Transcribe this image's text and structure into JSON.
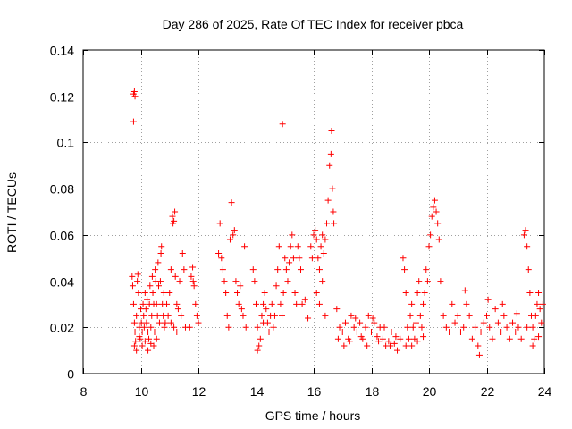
{
  "chart_data": {
    "type": "scatter",
    "title": "Day 286 of 2025, Rate Of TEC Index for receiver pbca",
    "xlabel": "GPS time / hours",
    "ylabel": "ROTI / TECUs",
    "xlim": [
      8,
      24
    ],
    "ylim": [
      0,
      0.14
    ],
    "x_ticks": [
      8,
      10,
      12,
      14,
      16,
      18,
      20,
      22,
      24
    ],
    "x_tick_labels": [
      "8",
      "10",
      "12",
      "14",
      "16",
      "18",
      "20",
      "22",
      "24"
    ],
    "y_ticks": [
      0,
      0.02,
      0.04,
      0.06,
      0.08,
      0.1,
      0.12,
      0.14
    ],
    "y_tick_labels": [
      "0",
      "0.02",
      "0.04",
      "0.06",
      "0.08",
      "0.1",
      "0.12",
      "0.14"
    ],
    "grid": true,
    "marker": "+",
    "color": "#ff0000",
    "series": [
      {
        "name": "ROTI",
        "points": [
          [
            9.75,
            0.121
          ],
          [
            9.78,
            0.122
          ],
          [
            9.8,
            0.12
          ],
          [
            9.75,
            0.109
          ],
          [
            9.7,
            0.042
          ],
          [
            9.72,
            0.038
          ],
          [
            9.75,
            0.03
          ],
          [
            9.78,
            0.022
          ],
          [
            9.8,
            0.018
          ],
          [
            9.82,
            0.014
          ],
          [
            9.85,
            0.025
          ],
          [
            9.88,
            0.04
          ],
          [
            9.9,
            0.043
          ],
          [
            9.92,
            0.035
          ],
          [
            9.95,
            0.02
          ],
          [
            9.98,
            0.015
          ],
          [
            10.0,
            0.028
          ],
          [
            10.02,
            0.022
          ],
          [
            10.05,
            0.018
          ],
          [
            10.08,
            0.03
          ],
          [
            10.1,
            0.025
          ],
          [
            10.12,
            0.02
          ],
          [
            10.15,
            0.035
          ],
          [
            10.18,
            0.028
          ],
          [
            10.2,
            0.022
          ],
          [
            10.22,
            0.032
          ],
          [
            10.25,
            0.018
          ],
          [
            10.28,
            0.015
          ],
          [
            10.3,
            0.03
          ],
          [
            10.32,
            0.038
          ],
          [
            10.35,
            0.02
          ],
          [
            10.38,
            0.025
          ],
          [
            10.4,
            0.042
          ],
          [
            10.42,
            0.035
          ],
          [
            10.45,
            0.03
          ],
          [
            10.48,
            0.018
          ],
          [
            10.5,
            0.045
          ],
          [
            10.52,
            0.04
          ],
          [
            10.55,
            0.03
          ],
          [
            10.58,
            0.025
          ],
          [
            10.6,
            0.048
          ],
          [
            10.62,
            0.038
          ],
          [
            10.65,
            0.022
          ],
          [
            10.68,
            0.04
          ],
          [
            10.7,
            0.052
          ],
          [
            10.72,
            0.055
          ],
          [
            10.75,
            0.03
          ],
          [
            10.78,
            0.025
          ],
          [
            10.8,
            0.035
          ],
          [
            10.82,
            0.02
          ],
          [
            10.85,
            0.022
          ],
          [
            9.78,
            0.012
          ],
          [
            9.85,
            0.01
          ],
          [
            9.95,
            0.016
          ],
          [
            10.05,
            0.012
          ],
          [
            10.15,
            0.014
          ],
          [
            10.25,
            0.01
          ],
          [
            10.35,
            0.013
          ],
          [
            10.45,
            0.012
          ],
          [
            10.55,
            0.015
          ],
          [
            10.9,
            0.03
          ],
          [
            10.95,
            0.025
          ],
          [
            11.0,
            0.035
          ],
          [
            11.05,
            0.045
          ],
          [
            11.1,
            0.068
          ],
          [
            11.12,
            0.065
          ],
          [
            11.15,
            0.066
          ],
          [
            11.18,
            0.07
          ],
          [
            11.2,
            0.042
          ],
          [
            11.25,
            0.03
          ],
          [
            11.3,
            0.028
          ],
          [
            11.35,
            0.04
          ],
          [
            11.4,
            0.025
          ],
          [
            11.45,
            0.052
          ],
          [
            11.5,
            0.045
          ],
          [
            11.55,
            0.02
          ],
          [
            11.05,
            0.022
          ],
          [
            11.15,
            0.02
          ],
          [
            11.25,
            0.018
          ],
          [
            11.75,
            0.042
          ],
          [
            11.8,
            0.046
          ],
          [
            11.85,
            0.038
          ],
          [
            11.9,
            0.03
          ],
          [
            11.95,
            0.025
          ],
          [
            12.0,
            0.022
          ],
          [
            11.7,
            0.02
          ],
          [
            11.82,
            0.04
          ],
          [
            12.7,
            0.052
          ],
          [
            12.75,
            0.065
          ],
          [
            12.8,
            0.05
          ],
          [
            12.85,
            0.045
          ],
          [
            12.9,
            0.04
          ],
          [
            12.95,
            0.035
          ],
          [
            13.0,
            0.025
          ],
          [
            13.05,
            0.02
          ],
          [
            13.1,
            0.058
          ],
          [
            13.15,
            0.074
          ],
          [
            13.2,
            0.06
          ],
          [
            13.25,
            0.062
          ],
          [
            13.3,
            0.04
          ],
          [
            13.35,
            0.035
          ],
          [
            13.4,
            0.03
          ],
          [
            13.45,
            0.038
          ],
          [
            13.5,
            0.028
          ],
          [
            13.55,
            0.025
          ],
          [
            13.6,
            0.055
          ],
          [
            13.65,
            0.02
          ],
          [
            13.9,
            0.045
          ],
          [
            13.95,
            0.04
          ],
          [
            14.0,
            0.03
          ],
          [
            14.05,
            0.02
          ],
          [
            14.1,
            0.012
          ],
          [
            14.15,
            0.015
          ],
          [
            14.2,
            0.025
          ],
          [
            14.25,
            0.03
          ],
          [
            14.3,
            0.035
          ],
          [
            14.35,
            0.028
          ],
          [
            14.4,
            0.022
          ],
          [
            14.45,
            0.018
          ],
          [
            14.5,
            0.025
          ],
          [
            14.55,
            0.03
          ],
          [
            14.6,
            0.02
          ],
          [
            14.65,
            0.025
          ],
          [
            14.7,
            0.038
          ],
          [
            14.75,
            0.045
          ],
          [
            14.8,
            0.055
          ],
          [
            14.85,
            0.03
          ],
          [
            14.9,
            0.025
          ],
          [
            14.95,
            0.035
          ],
          [
            14.92,
            0.108
          ],
          [
            14.05,
            0.01
          ],
          [
            14.25,
            0.022
          ],
          [
            15.0,
            0.05
          ],
          [
            15.05,
            0.045
          ],
          [
            15.1,
            0.04
          ],
          [
            15.15,
            0.048
          ],
          [
            15.2,
            0.055
          ],
          [
            15.25,
            0.06
          ],
          [
            15.3,
            0.05
          ],
          [
            15.35,
            0.035
          ],
          [
            15.4,
            0.03
          ],
          [
            15.45,
            0.055
          ],
          [
            15.5,
            0.05
          ],
          [
            15.55,
            0.045
          ],
          [
            15.6,
            0.03
          ],
          [
            15.7,
            0.032
          ],
          [
            15.8,
            0.024
          ],
          [
            15.9,
            0.055
          ],
          [
            15.95,
            0.05
          ],
          [
            16.0,
            0.06
          ],
          [
            16.05,
            0.062
          ],
          [
            16.1,
            0.058
          ],
          [
            16.15,
            0.05
          ],
          [
            16.2,
            0.045
          ],
          [
            16.25,
            0.055
          ],
          [
            16.3,
            0.06
          ],
          [
            16.35,
            0.052
          ],
          [
            16.4,
            0.058
          ],
          [
            16.45,
            0.065
          ],
          [
            16.5,
            0.075
          ],
          [
            16.55,
            0.09
          ],
          [
            16.6,
            0.095
          ],
          [
            16.62,
            0.105
          ],
          [
            16.65,
            0.08
          ],
          [
            16.68,
            0.07
          ],
          [
            16.7,
            0.065
          ],
          [
            16.1,
            0.035
          ],
          [
            16.2,
            0.03
          ],
          [
            16.3,
            0.04
          ],
          [
            16.4,
            0.025
          ],
          [
            16.8,
            0.028
          ],
          [
            16.9,
            0.02
          ],
          [
            17.0,
            0.018
          ],
          [
            17.1,
            0.022
          ],
          [
            17.2,
            0.015
          ],
          [
            17.3,
            0.025
          ],
          [
            17.4,
            0.02
          ],
          [
            17.5,
            0.018
          ],
          [
            17.6,
            0.022
          ],
          [
            17.7,
            0.015
          ],
          [
            17.8,
            0.02
          ],
          [
            17.9,
            0.025
          ],
          [
            18.0,
            0.018
          ],
          [
            18.1,
            0.022
          ],
          [
            18.2,
            0.016
          ],
          [
            18.3,
            0.02
          ],
          [
            18.4,
            0.015
          ],
          [
            18.5,
            0.012
          ],
          [
            18.6,
            0.014
          ],
          [
            18.7,
            0.018
          ],
          [
            18.8,
            0.013
          ],
          [
            18.9,
            0.01
          ],
          [
            19.0,
            0.015
          ],
          [
            16.85,
            0.015
          ],
          [
            17.05,
            0.012
          ],
          [
            17.25,
            0.014
          ],
          [
            17.45,
            0.024
          ],
          [
            17.65,
            0.016
          ],
          [
            17.85,
            0.012
          ],
          [
            18.05,
            0.024
          ],
          [
            18.25,
            0.014
          ],
          [
            18.45,
            0.02
          ],
          [
            18.65,
            0.012
          ],
          [
            18.85,
            0.016
          ],
          [
            19.1,
            0.05
          ],
          [
            19.15,
            0.045
          ],
          [
            19.2,
            0.035
          ],
          [
            19.25,
            0.02
          ],
          [
            19.3,
            0.015
          ],
          [
            19.35,
            0.025
          ],
          [
            19.4,
            0.03
          ],
          [
            19.45,
            0.02
          ],
          [
            19.5,
            0.015
          ],
          [
            19.55,
            0.022
          ],
          [
            19.6,
            0.035
          ],
          [
            19.65,
            0.04
          ],
          [
            19.7,
            0.025
          ],
          [
            19.75,
            0.02
          ],
          [
            19.8,
            0.03
          ],
          [
            19.85,
            0.035
          ],
          [
            19.9,
            0.045
          ],
          [
            19.95,
            0.04
          ],
          [
            20.0,
            0.055
          ],
          [
            20.05,
            0.06
          ],
          [
            20.1,
            0.068
          ],
          [
            20.15,
            0.072
          ],
          [
            20.2,
            0.075
          ],
          [
            20.25,
            0.07
          ],
          [
            20.3,
            0.065
          ],
          [
            20.35,
            0.058
          ],
          [
            20.4,
            0.04
          ],
          [
            19.2,
            0.012
          ],
          [
            19.4,
            0.012
          ],
          [
            19.6,
            0.014
          ],
          [
            19.8,
            0.016
          ],
          [
            20.5,
            0.025
          ],
          [
            20.6,
            0.02
          ],
          [
            20.7,
            0.018
          ],
          [
            20.8,
            0.03
          ],
          [
            20.9,
            0.022
          ],
          [
            21.0,
            0.025
          ],
          [
            21.1,
            0.018
          ],
          [
            21.2,
            0.02
          ],
          [
            21.3,
            0.03
          ],
          [
            21.4,
            0.025
          ],
          [
            21.5,
            0.015
          ],
          [
            21.6,
            0.02
          ],
          [
            21.7,
            0.012
          ],
          [
            21.8,
            0.018
          ],
          [
            21.9,
            0.022
          ],
          [
            22.0,
            0.025
          ],
          [
            22.1,
            0.02
          ],
          [
            22.2,
            0.015
          ],
          [
            22.3,
            0.028
          ],
          [
            22.4,
            0.022
          ],
          [
            22.5,
            0.018
          ],
          [
            22.6,
            0.025
          ],
          [
            22.7,
            0.02
          ],
          [
            22.8,
            0.015
          ],
          [
            22.9,
            0.022
          ],
          [
            23.0,
            0.018
          ],
          [
            23.1,
            0.02
          ],
          [
            23.2,
            0.015
          ],
          [
            21.25,
            0.036
          ],
          [
            21.75,
            0.008
          ],
          [
            22.05,
            0.032
          ],
          [
            22.55,
            0.03
          ],
          [
            23.05,
            0.026
          ],
          [
            23.3,
            0.06
          ],
          [
            23.35,
            0.062
          ],
          [
            23.4,
            0.055
          ],
          [
            23.45,
            0.045
          ],
          [
            23.5,
            0.035
          ],
          [
            23.55,
            0.025
          ],
          [
            23.6,
            0.02
          ],
          [
            23.65,
            0.015
          ],
          [
            23.7,
            0.025
          ],
          [
            23.75,
            0.03
          ],
          [
            23.8,
            0.035
          ],
          [
            23.85,
            0.028
          ],
          [
            23.9,
            0.022
          ],
          [
            23.95,
            0.03
          ],
          [
            23.4,
            0.02
          ],
          [
            23.6,
            0.012
          ],
          [
            23.8,
            0.016
          ]
        ]
      }
    ]
  }
}
